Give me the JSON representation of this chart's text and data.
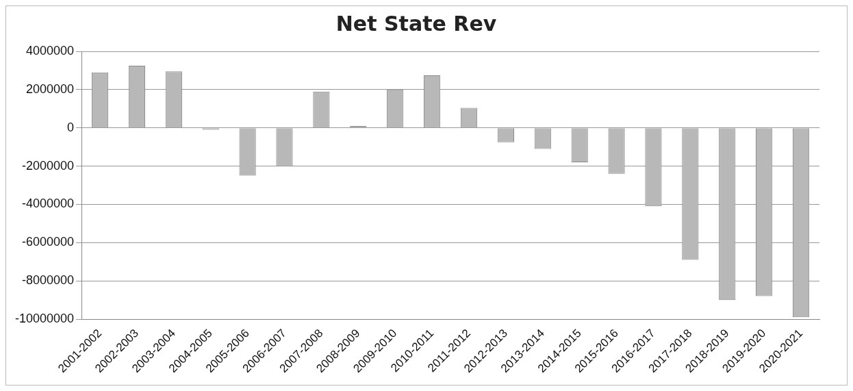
{
  "chart_data": {
    "type": "bar",
    "title": "Net State Rev",
    "categories": [
      "2001-2002",
      "2002-2003",
      "2003-2004",
      "2004-2005",
      "2005-2006",
      "2006-2007",
      "2007-2008",
      "2008-2009",
      "2009-2010",
      "2010-2011",
      "2011-2012",
      "2012-2013",
      "2013-2014",
      "2014-2015",
      "2015-2016",
      "2016-2017",
      "2017-2018",
      "2018-2019",
      "2019-2020",
      "2020-2021"
    ],
    "values": [
      2900000,
      3250000,
      2950000,
      -100000,
      -2500000,
      -2000000,
      1900000,
      100000,
      2000000,
      2750000,
      1050000,
      -750000,
      -1100000,
      -1800000,
      -2400000,
      -4100000,
      -6900000,
      -9000000,
      -8800000,
      -9900000
    ],
    "color": "#b8b8b8",
    "ylim": [
      -10000000,
      4000000
    ],
    "yticks": [
      -10000000,
      -8000000,
      -6000000,
      -4000000,
      -2000000,
      0,
      2000000,
      4000000
    ],
    "grid": "y",
    "legend": false
  }
}
